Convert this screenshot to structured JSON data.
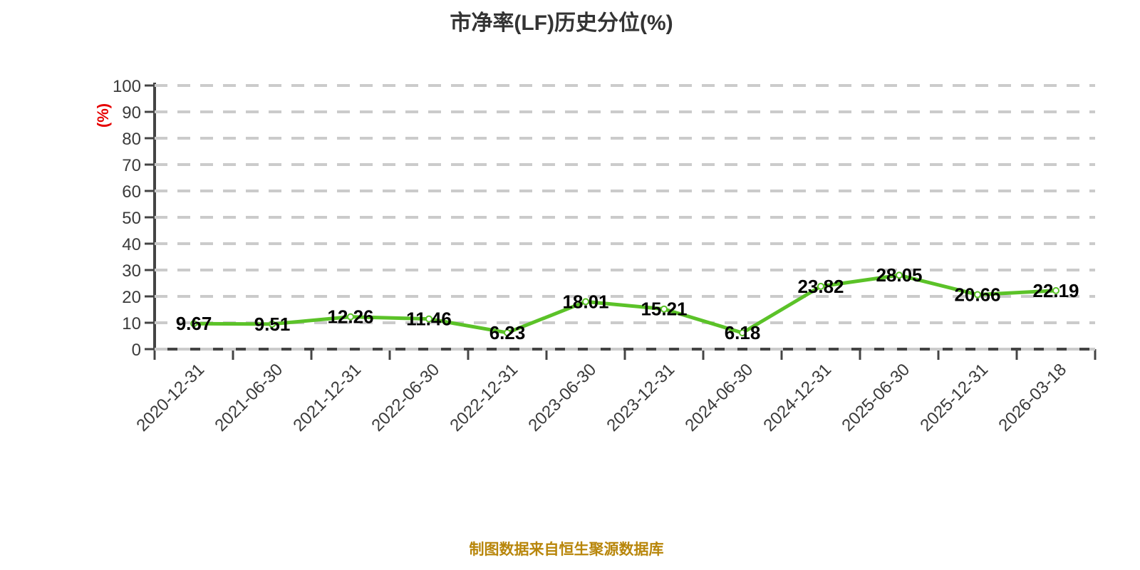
{
  "title": "市净率(LF)历史分位(%)",
  "y_axis_name": "(%)",
  "footer": "制图数据来自恒生聚源数据库",
  "colors": {
    "line": "#5bc228",
    "marker_fill": "#ffffff",
    "grid": "#cbcbcb",
    "axis": "#444444",
    "title_text": "#333333",
    "axis_text": "#3b3b3b",
    "data_label_text": "#000000",
    "y_name_text": "#e60000",
    "footer_text": "#b8860b",
    "background": "#ffffff"
  },
  "chart_data": {
    "type": "line",
    "title": "市净率(LF)历史分位(%)",
    "categories": [
      "2020-12-31",
      "2021-06-30",
      "2021-12-31",
      "2022-06-30",
      "2022-12-31",
      "2023-06-30",
      "2023-12-31",
      "2024-06-30",
      "2024-12-31",
      "2025-06-30",
      "2025-12-31",
      "2026-03-18"
    ],
    "values": [
      9.67,
      9.51,
      12.26,
      11.46,
      6.23,
      18.01,
      15.21,
      6.18,
      23.82,
      28.05,
      20.66,
      22.19
    ],
    "xlabel": "",
    "ylabel": "(%)",
    "ylim": [
      0,
      100
    ],
    "y_ticks": [
      0,
      10,
      20,
      30,
      40,
      50,
      60,
      70,
      80,
      90,
      100
    ],
    "grid": "horizontal-dashed",
    "legend": "none",
    "data_labels": "value text centered on each point",
    "x_label_rotation": 45
  }
}
